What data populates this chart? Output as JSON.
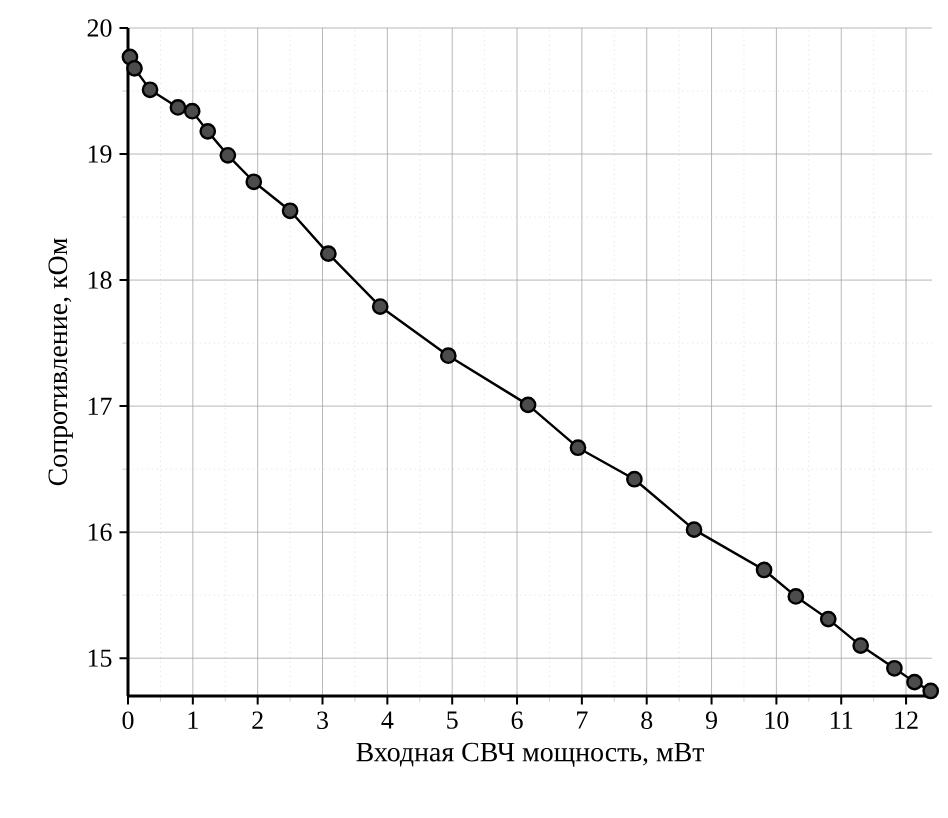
{
  "chart_data": {
    "type": "line",
    "xlabel": "Входная СВЧ мощность, мВт",
    "ylabel": "Сопротивление, кОм",
    "x": [
      0.03,
      0.1,
      0.34,
      0.77,
      0.99,
      1.23,
      1.54,
      1.94,
      2.5,
      3.09,
      3.89,
      4.94,
      6.17,
      6.94,
      7.81,
      8.73,
      9.81,
      10.3,
      10.8,
      11.3,
      11.82,
      12.13,
      12.38
    ],
    "series": [
      {
        "color": "#000000",
        "values": [
          19.77,
          19.68,
          19.51,
          19.37,
          19.34,
          19.18,
          18.99,
          18.78,
          18.55,
          18.21,
          17.79,
          17.4,
          17.01,
          16.67,
          16.42,
          16.02,
          15.7,
          15.49,
          15.31,
          15.1,
          14.92,
          14.81,
          14.74
        ]
      }
    ],
    "xlim": [
      0,
      12.4
    ],
    "ylim": [
      14.7,
      20
    ],
    "xticks": [
      0,
      1,
      2,
      3,
      4,
      5,
      6,
      7,
      8,
      9,
      10,
      11,
      12
    ],
    "yticks": [
      15,
      16,
      17,
      18,
      19,
      20
    ],
    "grid": true,
    "marker": "circle",
    "line_style": "solid"
  }
}
